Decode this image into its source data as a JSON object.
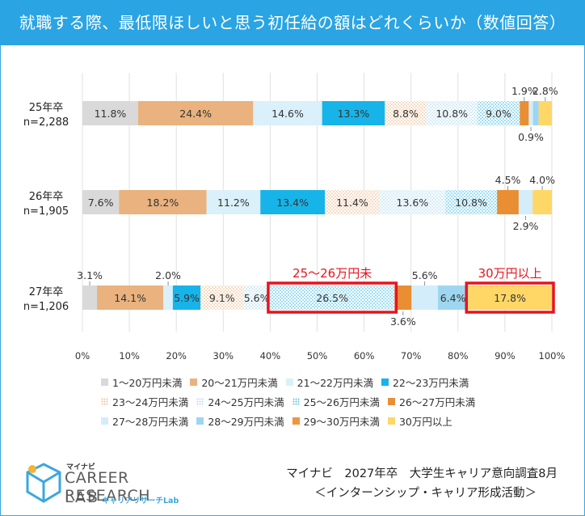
{
  "title": "就職する際、最低限ほしいと思う初任給の額はどれくらいか（数値回答）",
  "chart_data": {
    "type": "bar",
    "orientation": "horizontal",
    "stacked": true,
    "percent_axis": true,
    "categories": [
      {
        "label": "25年卒",
        "n": "n=2,288"
      },
      {
        "label": "26年卒",
        "n": "n=1,905"
      },
      {
        "label": "27年卒",
        "n": "n=1,206"
      }
    ],
    "x_ticks": [
      "0%",
      "10%",
      "20%",
      "30%",
      "40%",
      "50%",
      "60%",
      "70%",
      "80%",
      "90%",
      "100%"
    ],
    "xlim": [
      0,
      100
    ],
    "series": [
      {
        "name": "1～20万円未満",
        "color": "#d9d9d9",
        "pattern": "solid",
        "values": [
          11.8,
          7.6,
          3.1
        ]
      },
      {
        "name": "20～21万円未満",
        "color": "#e9b27e",
        "pattern": "solid",
        "values": [
          24.4,
          18.2,
          14.1
        ]
      },
      {
        "name": "21～22万円未満",
        "color": "#daf0fb",
        "pattern": "solid",
        "values": [
          14.6,
          11.2,
          2.0
        ]
      },
      {
        "name": "22～23万円未満",
        "color": "#16b4e8",
        "pattern": "solid",
        "values": [
          13.3,
          13.4,
          5.9
        ]
      },
      {
        "name": "23～24万円未満",
        "color": "#f3c499",
        "pattern": "dots",
        "values": [
          8.8,
          11.4,
          9.1
        ]
      },
      {
        "name": "24～25万円未満",
        "color": "#b6dff5",
        "pattern": "dots",
        "values": [
          10.8,
          13.6,
          5.6
        ]
      },
      {
        "name": "25～26万円未満",
        "color": "#5ec9f0",
        "pattern": "dots",
        "values": [
          9.0,
          10.8,
          26.5
        ]
      },
      {
        "name": "26～27万円未満",
        "color": "#e98e32",
        "pattern": "solid",
        "values": [
          1.9,
          4.5,
          3.6
        ]
      },
      {
        "name": "27～28万円未満",
        "color": "#d3edfa",
        "pattern": "solid",
        "values": [
          0.9,
          2.9,
          5.6
        ]
      },
      {
        "name": "28～29万円未満",
        "color": "#9ed6f0",
        "pattern": "solid",
        "values": [
          1.2,
          0.0,
          6.4
        ]
      },
      {
        "name": "29～30万円未満",
        "color": "#f0953f",
        "pattern": "solid",
        "values": [
          0.0,
          0.0,
          0.0
        ]
      },
      {
        "name": "30万円以上",
        "color": "#ffd766",
        "pattern": "solid",
        "values": [
          2.8,
          4.0,
          17.8
        ]
      }
    ],
    "bar_labels": [
      [
        {
          "seg": 0,
          "text": "11.8%",
          "pos": "in"
        },
        {
          "seg": 1,
          "text": "24.4%",
          "pos": "in"
        },
        {
          "seg": 2,
          "text": "14.6%",
          "pos": "in"
        },
        {
          "seg": 3,
          "text": "13.3%",
          "pos": "in"
        },
        {
          "seg": 4,
          "text": "8.8%",
          "pos": "in"
        },
        {
          "seg": 5,
          "text": "10.8%",
          "pos": "in"
        },
        {
          "seg": 6,
          "text": "9.0%",
          "pos": "in"
        },
        {
          "seg": 7,
          "text": "1.9%",
          "pos": "above"
        },
        {
          "seg": 8,
          "text": "0.9%",
          "pos": "below"
        },
        {
          "seg": 11,
          "text": "2.8%",
          "pos": "above"
        }
      ],
      [
        {
          "seg": 0,
          "text": "7.6%",
          "pos": "in"
        },
        {
          "seg": 1,
          "text": "18.2%",
          "pos": "in"
        },
        {
          "seg": 2,
          "text": "11.2%",
          "pos": "in"
        },
        {
          "seg": 3,
          "text": "13.4%",
          "pos": "in"
        },
        {
          "seg": 4,
          "text": "11.4%",
          "pos": "in"
        },
        {
          "seg": 5,
          "text": "13.6%",
          "pos": "in"
        },
        {
          "seg": 6,
          "text": "10.8%",
          "pos": "in"
        },
        {
          "seg": 7,
          "text": "4.5%",
          "pos": "above"
        },
        {
          "seg": 8,
          "text": "2.9%",
          "pos": "below"
        },
        {
          "seg": 11,
          "text": "4.0%",
          "pos": "above"
        }
      ],
      [
        {
          "seg": 0,
          "text": "3.1%",
          "pos": "above"
        },
        {
          "seg": 1,
          "text": "14.1%",
          "pos": "in"
        },
        {
          "seg": 2,
          "text": "2.0%",
          "pos": "above"
        },
        {
          "seg": 3,
          "text": "5.9%",
          "pos": "in"
        },
        {
          "seg": 4,
          "text": "9.1%",
          "pos": "in"
        },
        {
          "seg": 5,
          "text": "5.6%",
          "pos": "in"
        },
        {
          "seg": 6,
          "text": "26.5%",
          "pos": "in"
        },
        {
          "seg": 7,
          "text": "3.6%",
          "pos": "below"
        },
        {
          "seg": 8,
          "text": "5.6%",
          "pos": "above"
        },
        {
          "seg": 9,
          "text": "6.4%",
          "pos": "in"
        },
        {
          "seg": 11,
          "text": "17.8%",
          "pos": "in"
        }
      ]
    ],
    "highlights": [
      {
        "bar": 2,
        "seg": 6,
        "label": "25～26万円未",
        "color": "#e8141c"
      },
      {
        "bar": 2,
        "seg": 11,
        "label": "30万円以上",
        "color": "#e8141c"
      }
    ]
  },
  "logo": {
    "brand": "マイナビ",
    "main": "CAREER RESEARCH",
    "lab": "LAB",
    "sub": "キャリアリサーチLab"
  },
  "source": {
    "line1": "マイナビ　2027年卒　大学生キャリア意向調査8月",
    "line2": "＜インターンシップ・キャリア形成活動＞"
  }
}
